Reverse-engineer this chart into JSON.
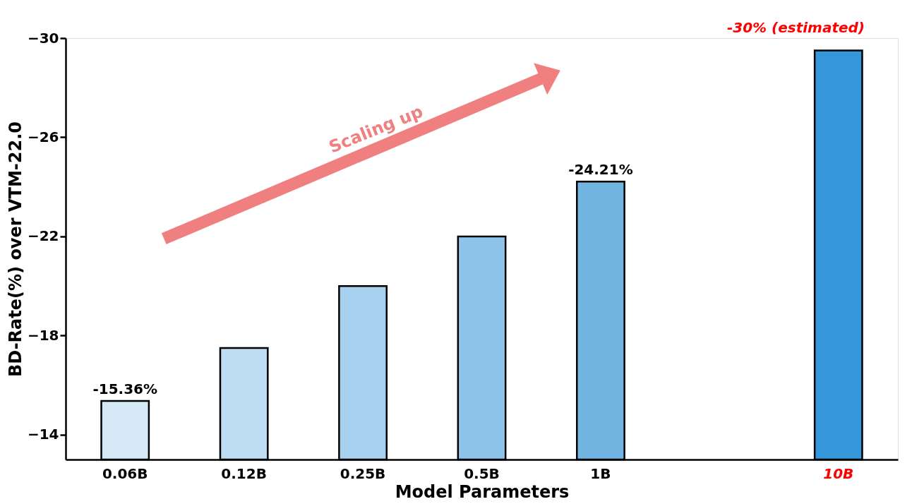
{
  "chart_data": {
    "type": "bar",
    "xlabel": "Model Parameters",
    "ylabel": "BD-Rate(%) over VTM-22.0",
    "categories": [
      "0.06B",
      "0.12B",
      "0.25B",
      "0.5B",
      "1B",
      null,
      "10B"
    ],
    "values": [
      -15.36,
      -17.5,
      -20.0,
      -22.0,
      -24.21,
      null,
      -29.5
    ],
    "colors": [
      "#d6e9f7",
      "#bfddf2",
      "#a8d1f0",
      "#8fc4ea",
      "#72b5e3",
      null,
      "#3597d9"
    ],
    "value_labels": [
      "-15.36%",
      null,
      null,
      null,
      "-24.21%",
      null,
      null
    ],
    "annotations": [
      "-30% (estimated)",
      "Scaling up"
    ],
    "ylim": [
      -13,
      -30
    ],
    "yticks": [
      -30,
      -26,
      -22,
      -18,
      -14
    ],
    "grid": false
  }
}
